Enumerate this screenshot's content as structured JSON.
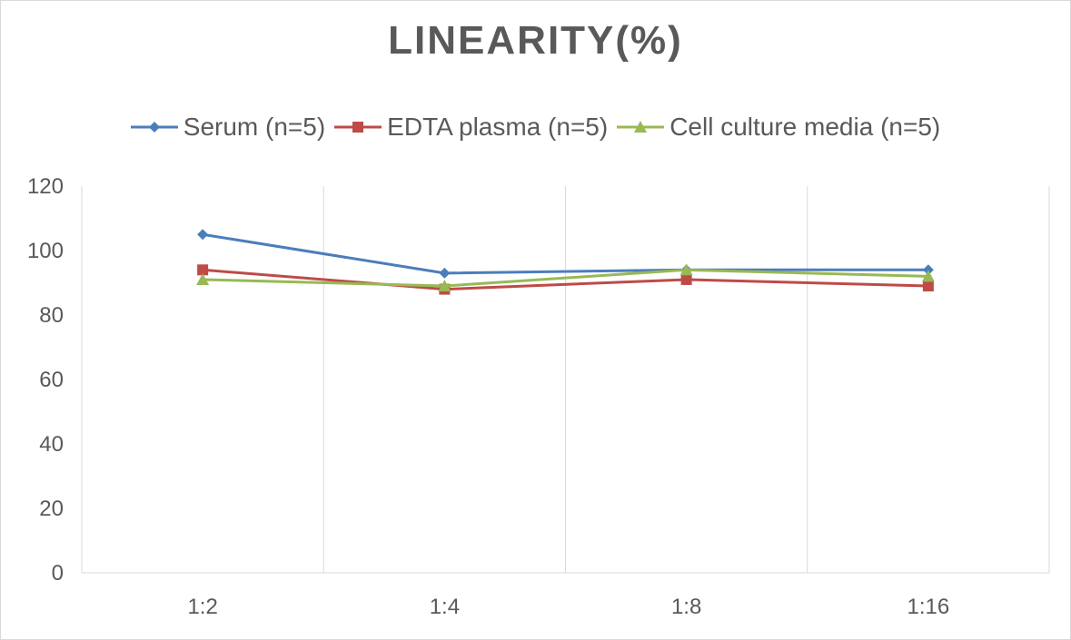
{
  "chart_data": {
    "type": "line",
    "title": "LINEARITY(%)",
    "categories": [
      "1:2",
      "1:4",
      "1:8",
      "1:16"
    ],
    "ylim": [
      0,
      120
    ],
    "yticks": [
      0,
      20,
      40,
      60,
      80,
      100,
      120
    ],
    "grid": "vertical",
    "legend_position": "top",
    "series": [
      {
        "name": "Serum (n=5)",
        "values": [
          105,
          93,
          94,
          94
        ],
        "color": "#4a7ebb",
        "marker": "diamond"
      },
      {
        "name": "EDTA plasma (n=5)",
        "values": [
          94,
          88,
          91,
          89
        ],
        "color": "#be4b48",
        "marker": "square"
      },
      {
        "name": "Cell culture media (n=5)",
        "values": [
          91,
          89,
          94,
          92
        ],
        "color": "#98b954",
        "marker": "triangle"
      }
    ]
  }
}
